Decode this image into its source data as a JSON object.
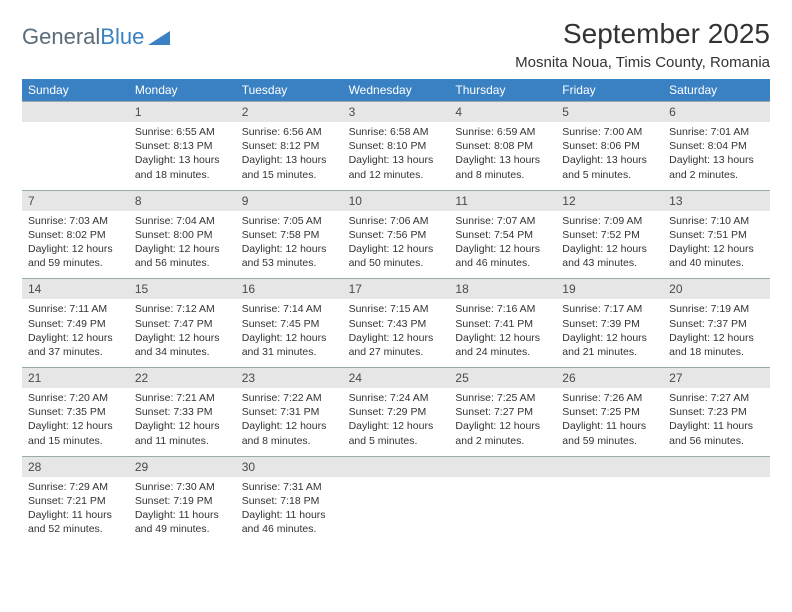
{
  "brand": {
    "word1": "General",
    "word2": "Blue"
  },
  "title": "September 2025",
  "location": "Mosnita Noua, Timis County, Romania",
  "colors": {
    "header_bg": "#3a81c4",
    "header_text": "#ffffff",
    "daynum_bg": "#e6e6e6",
    "daynum_text": "#4a4a4a",
    "body_text": "#333333",
    "page_bg": "#ffffff"
  },
  "dow": [
    "Sunday",
    "Monday",
    "Tuesday",
    "Wednesday",
    "Thursday",
    "Friday",
    "Saturday"
  ],
  "weeks": [
    [
      {
        "num": "",
        "lines": []
      },
      {
        "num": "1",
        "lines": [
          "Sunrise: 6:55 AM",
          "Sunset: 8:13 PM",
          "Daylight: 13 hours",
          "and 18 minutes."
        ]
      },
      {
        "num": "2",
        "lines": [
          "Sunrise: 6:56 AM",
          "Sunset: 8:12 PM",
          "Daylight: 13 hours",
          "and 15 minutes."
        ]
      },
      {
        "num": "3",
        "lines": [
          "Sunrise: 6:58 AM",
          "Sunset: 8:10 PM",
          "Daylight: 13 hours",
          "and 12 minutes."
        ]
      },
      {
        "num": "4",
        "lines": [
          "Sunrise: 6:59 AM",
          "Sunset: 8:08 PM",
          "Daylight: 13 hours",
          "and 8 minutes."
        ]
      },
      {
        "num": "5",
        "lines": [
          "Sunrise: 7:00 AM",
          "Sunset: 8:06 PM",
          "Daylight: 13 hours",
          "and 5 minutes."
        ]
      },
      {
        "num": "6",
        "lines": [
          "Sunrise: 7:01 AM",
          "Sunset: 8:04 PM",
          "Daylight: 13 hours",
          "and 2 minutes."
        ]
      }
    ],
    [
      {
        "num": "7",
        "lines": [
          "Sunrise: 7:03 AM",
          "Sunset: 8:02 PM",
          "Daylight: 12 hours",
          "and 59 minutes."
        ]
      },
      {
        "num": "8",
        "lines": [
          "Sunrise: 7:04 AM",
          "Sunset: 8:00 PM",
          "Daylight: 12 hours",
          "and 56 minutes."
        ]
      },
      {
        "num": "9",
        "lines": [
          "Sunrise: 7:05 AM",
          "Sunset: 7:58 PM",
          "Daylight: 12 hours",
          "and 53 minutes."
        ]
      },
      {
        "num": "10",
        "lines": [
          "Sunrise: 7:06 AM",
          "Sunset: 7:56 PM",
          "Daylight: 12 hours",
          "and 50 minutes."
        ]
      },
      {
        "num": "11",
        "lines": [
          "Sunrise: 7:07 AM",
          "Sunset: 7:54 PM",
          "Daylight: 12 hours",
          "and 46 minutes."
        ]
      },
      {
        "num": "12",
        "lines": [
          "Sunrise: 7:09 AM",
          "Sunset: 7:52 PM",
          "Daylight: 12 hours",
          "and 43 minutes."
        ]
      },
      {
        "num": "13",
        "lines": [
          "Sunrise: 7:10 AM",
          "Sunset: 7:51 PM",
          "Daylight: 12 hours",
          "and 40 minutes."
        ]
      }
    ],
    [
      {
        "num": "14",
        "lines": [
          "Sunrise: 7:11 AM",
          "Sunset: 7:49 PM",
          "Daylight: 12 hours",
          "and 37 minutes."
        ]
      },
      {
        "num": "15",
        "lines": [
          "Sunrise: 7:12 AM",
          "Sunset: 7:47 PM",
          "Daylight: 12 hours",
          "and 34 minutes."
        ]
      },
      {
        "num": "16",
        "lines": [
          "Sunrise: 7:14 AM",
          "Sunset: 7:45 PM",
          "Daylight: 12 hours",
          "and 31 minutes."
        ]
      },
      {
        "num": "17",
        "lines": [
          "Sunrise: 7:15 AM",
          "Sunset: 7:43 PM",
          "Daylight: 12 hours",
          "and 27 minutes."
        ]
      },
      {
        "num": "18",
        "lines": [
          "Sunrise: 7:16 AM",
          "Sunset: 7:41 PM",
          "Daylight: 12 hours",
          "and 24 minutes."
        ]
      },
      {
        "num": "19",
        "lines": [
          "Sunrise: 7:17 AM",
          "Sunset: 7:39 PM",
          "Daylight: 12 hours",
          "and 21 minutes."
        ]
      },
      {
        "num": "20",
        "lines": [
          "Sunrise: 7:19 AM",
          "Sunset: 7:37 PM",
          "Daylight: 12 hours",
          "and 18 minutes."
        ]
      }
    ],
    [
      {
        "num": "21",
        "lines": [
          "Sunrise: 7:20 AM",
          "Sunset: 7:35 PM",
          "Daylight: 12 hours",
          "and 15 minutes."
        ]
      },
      {
        "num": "22",
        "lines": [
          "Sunrise: 7:21 AM",
          "Sunset: 7:33 PM",
          "Daylight: 12 hours",
          "and 11 minutes."
        ]
      },
      {
        "num": "23",
        "lines": [
          "Sunrise: 7:22 AM",
          "Sunset: 7:31 PM",
          "Daylight: 12 hours",
          "and 8 minutes."
        ]
      },
      {
        "num": "24",
        "lines": [
          "Sunrise: 7:24 AM",
          "Sunset: 7:29 PM",
          "Daylight: 12 hours",
          "and 5 minutes."
        ]
      },
      {
        "num": "25",
        "lines": [
          "Sunrise: 7:25 AM",
          "Sunset: 7:27 PM",
          "Daylight: 12 hours",
          "and 2 minutes."
        ]
      },
      {
        "num": "26",
        "lines": [
          "Sunrise: 7:26 AM",
          "Sunset: 7:25 PM",
          "Daylight: 11 hours",
          "and 59 minutes."
        ]
      },
      {
        "num": "27",
        "lines": [
          "Sunrise: 7:27 AM",
          "Sunset: 7:23 PM",
          "Daylight: 11 hours",
          "and 56 minutes."
        ]
      }
    ],
    [
      {
        "num": "28",
        "lines": [
          "Sunrise: 7:29 AM",
          "Sunset: 7:21 PM",
          "Daylight: 11 hours",
          "and 52 minutes."
        ]
      },
      {
        "num": "29",
        "lines": [
          "Sunrise: 7:30 AM",
          "Sunset: 7:19 PM",
          "Daylight: 11 hours",
          "and 49 minutes."
        ]
      },
      {
        "num": "30",
        "lines": [
          "Sunrise: 7:31 AM",
          "Sunset: 7:18 PM",
          "Daylight: 11 hours",
          "and 46 minutes."
        ]
      },
      {
        "num": "",
        "lines": []
      },
      {
        "num": "",
        "lines": []
      },
      {
        "num": "",
        "lines": []
      },
      {
        "num": "",
        "lines": []
      }
    ]
  ]
}
